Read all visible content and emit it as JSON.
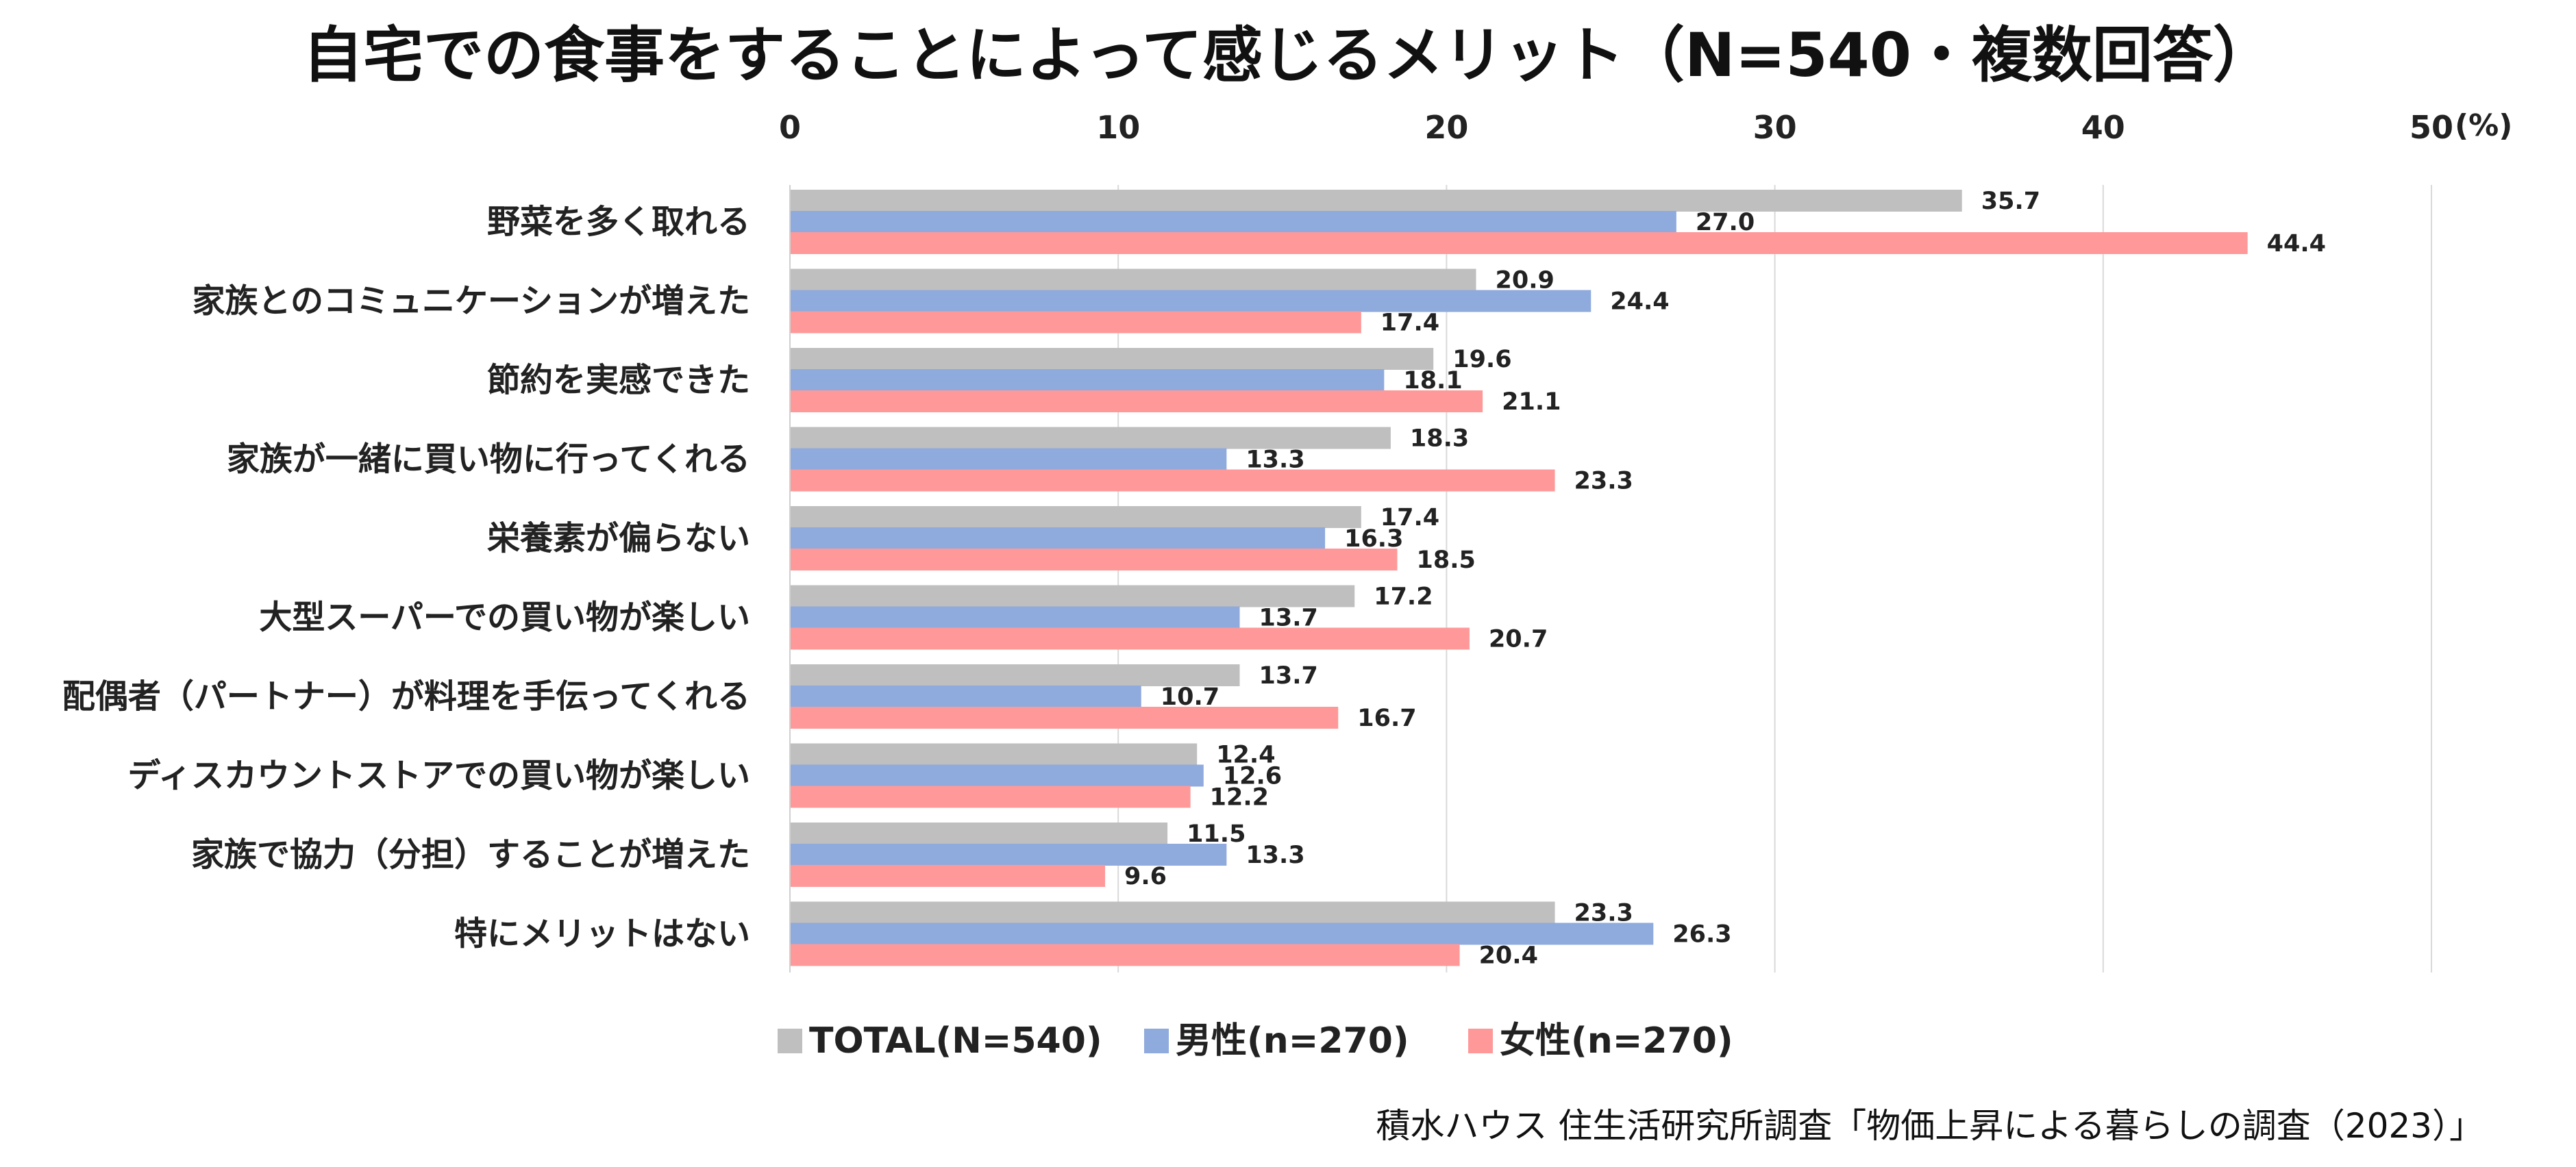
{
  "chart_data": {
    "type": "bar",
    "orientation": "horizontal",
    "title": "自宅での食事をすることによって感じるメリット（N=540・複数回答）",
    "unit_label": "(%)",
    "xlim": [
      0,
      50
    ],
    "xticks": [
      0,
      10,
      20,
      30,
      40,
      50
    ],
    "grid": true,
    "legend_position": "bottom",
    "categories": [
      "野菜を多く取れる",
      "家族とのコミュニケーションが増えた",
      "節約を実感できた",
      "家族が一緒に買い物に行ってくれる",
      "栄養素が偏らない",
      "大型スーパーでの買い物が楽しい",
      "配偶者（パートナー）が料理を手伝ってくれる",
      "ディスカウントストアでの買い物が楽しい",
      "家族で協力（分担）することが増えた",
      "特にメリットはない"
    ],
    "series": [
      {
        "name": "TOTAL(N=540)",
        "color": "#bfbfbf",
        "label_color": "#222222",
        "values": [
          35.7,
          20.9,
          19.6,
          18.3,
          17.4,
          17.2,
          13.7,
          12.4,
          11.5,
          23.3
        ]
      },
      {
        "name": "男性(n=270)",
        "color": "#8faadc",
        "label_color": "#222222",
        "values": [
          27.0,
          24.4,
          18.1,
          13.3,
          16.3,
          13.7,
          10.7,
          12.6,
          13.3,
          26.3
        ]
      },
      {
        "name": "女性(n=270)",
        "color": "#ff9999",
        "label_color": "#222222",
        "values": [
          44.4,
          17.4,
          21.1,
          23.3,
          18.5,
          20.7,
          16.7,
          12.2,
          9.6,
          20.4
        ]
      }
    ],
    "highlight": {
      "series_index": 2,
      "category_index": 0,
      "color": "#d92b2b"
    }
  },
  "source_note": "積水ハウス 住生活研究所調査「物価上昇による暮らしの調査（2023）」"
}
